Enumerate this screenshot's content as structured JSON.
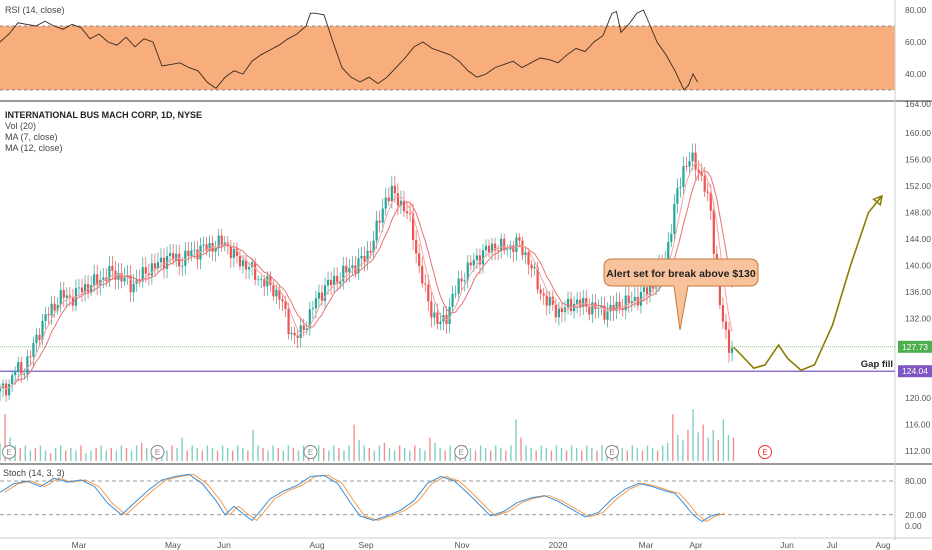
{
  "chart_data": {
    "type": "candlestick",
    "symbol_title": "INTERNATIONAL BUS MACH CORP, 1D, NYSE",
    "indicator_labels": [
      "Vol (20)",
      "MA (7, close)",
      "MA (12, close)"
    ],
    "x_ticks": [
      "Mar",
      "May",
      "Jun",
      "Aug",
      "Sep",
      "Nov",
      "2020",
      "Mar",
      "Apr",
      "Jun",
      "Jul",
      "Aug"
    ],
    "price_axis": {
      "ticks": [
        "164.00",
        "160.00",
        "156.00",
        "152.00",
        "148.00",
        "144.00",
        "140.00",
        "136.00",
        "132.00",
        "128.00",
        "124.00",
        "120.00",
        "116.00",
        "112.00"
      ],
      "ylim": [
        110,
        164.5
      ]
    },
    "price_path": [
      [
        0,
        121
      ],
      [
        4,
        122
      ],
      [
        7,
        124.5
      ],
      [
        10,
        124
      ],
      [
        13,
        126
      ],
      [
        16,
        129
      ],
      [
        20,
        132
      ],
      [
        24,
        134
      ],
      [
        28,
        135.5
      ],
      [
        32,
        135
      ],
      [
        36,
        136.5
      ],
      [
        40,
        137
      ],
      [
        45,
        138
      ],
      [
        50,
        139
      ],
      [
        55,
        138
      ],
      [
        58,
        137
      ],
      [
        62,
        138
      ],
      [
        66,
        139.5
      ],
      [
        70,
        140
      ],
      [
        75,
        141.5
      ],
      [
        80,
        140.5
      ],
      [
        85,
        142
      ],
      [
        90,
        142.5
      ],
      [
        95,
        143
      ],
      [
        100,
        143.5
      ],
      [
        105,
        141
      ],
      [
        110,
        140
      ],
      [
        115,
        138
      ],
      [
        120,
        137
      ],
      [
        125,
        135
      ],
      [
        128,
        131
      ],
      [
        131,
        129
      ],
      [
        134,
        130
      ],
      [
        137,
        132
      ],
      [
        140,
        134.5
      ],
      [
        145,
        137
      ],
      [
        150,
        138
      ],
      [
        155,
        139.5
      ],
      [
        160,
        140.5
      ],
      [
        164,
        142
      ],
      [
        168,
        146
      ],
      [
        171,
        150
      ],
      [
        174,
        151
      ],
      [
        177,
        150
      ],
      [
        180,
        148.5
      ],
      [
        183,
        146
      ],
      [
        186,
        140
      ],
      [
        189,
        136
      ],
      [
        192,
        133
      ],
      [
        195,
        131
      ],
      [
        198,
        132
      ],
      [
        201,
        135
      ],
      [
        205,
        138
      ],
      [
        210,
        140.5
      ],
      [
        215,
        142
      ],
      [
        220,
        143
      ],
      [
        225,
        142.5
      ],
      [
        230,
        143.5
      ],
      [
        233,
        142
      ],
      [
        236,
        140
      ],
      [
        239,
        137
      ],
      [
        242,
        135
      ],
      [
        245,
        134
      ],
      [
        248,
        133
      ],
      [
        251,
        133.5
      ],
      [
        255,
        134.5
      ],
      [
        260,
        134
      ],
      [
        265,
        133.5
      ],
      [
        270,
        133
      ],
      [
        275,
        134
      ],
      [
        280,
        134.5
      ],
      [
        285,
        135.5
      ],
      [
        290,
        137
      ],
      [
        295,
        140
      ],
      [
        298,
        145
      ],
      [
        301,
        151
      ],
      [
        304,
        155
      ],
      [
        307,
        156
      ],
      [
        310,
        155
      ],
      [
        313,
        152
      ],
      [
        316,
        148
      ],
      [
        318,
        140
      ],
      [
        320,
        134
      ],
      [
        322,
        130
      ],
      [
        324,
        128
      ],
      [
        326,
        127.7
      ]
    ],
    "ma_fast_offset": 0.6,
    "last_price": "127.73",
    "gap_fill_level": "124.04",
    "gap_fill_label": "Gap fill",
    "projection_path": [
      [
        326,
        127.7
      ],
      [
        335,
        124.5
      ],
      [
        340,
        125
      ],
      [
        346,
        128
      ],
      [
        350,
        126
      ],
      [
        356,
        124.2
      ],
      [
        362,
        125
      ],
      [
        370,
        131
      ],
      [
        378,
        140
      ],
      [
        386,
        148
      ],
      [
        392,
        150.5
      ]
    ],
    "annotation": {
      "text": "Alert set for break above $130"
    },
    "volume_bars": [
      0.35,
      0.9,
      0.45,
      0.3,
      0.25,
      0.3,
      0.2,
      0.25,
      0.3,
      0.2,
      0.15,
      0.25,
      0.3,
      0.2,
      0.25,
      0.2,
      0.3,
      0.15,
      0.2,
      0.25,
      0.3,
      0.2,
      0.25,
      0.2,
      0.3,
      0.25,
      0.2,
      0.3,
      0.35,
      0.25,
      0.2,
      0.3,
      0.25,
      0.2,
      0.3,
      0.25,
      0.45,
      0.2,
      0.3,
      0.25,
      0.2,
      0.3,
      0.25,
      0.2,
      0.3,
      0.25,
      0.2,
      0.3,
      0.25,
      0.2,
      0.6,
      0.3,
      0.25,
      0.2,
      0.3,
      0.25,
      0.2,
      0.3,
      0.25,
      0.2,
      0.3,
      0.25,
      0.2,
      0.3,
      0.25,
      0.2,
      0.3,
      0.25,
      0.2,
      0.3,
      0.7,
      0.4,
      0.3,
      0.25,
      0.2,
      0.3,
      0.35,
      0.25,
      0.2,
      0.3,
      0.25,
      0.2,
      0.3,
      0.25,
      0.2,
      0.45,
      0.35,
      0.25,
      0.2,
      0.3,
      0.25,
      0.2,
      0.3,
      0.25,
      0.2,
      0.3,
      0.25,
      0.2,
      0.3,
      0.25,
      0.2,
      0.3,
      0.8,
      0.45,
      0.3,
      0.25,
      0.2,
      0.3,
      0.25,
      0.2,
      0.3,
      0.25,
      0.2,
      0.3,
      0.25,
      0.2,
      0.3,
      0.25,
      0.2,
      0.3,
      0.25,
      0.2,
      0.3,
      0.25,
      0.2,
      0.3,
      0.25,
      0.2,
      0.3,
      0.25,
      0.2,
      0.3,
      0.35,
      0.9,
      0.5,
      0.4,
      0.6,
      1.0,
      0.55,
      0.7,
      0.45,
      0.6,
      0.4,
      0.8,
      0.5,
      0.45
    ],
    "earnings_markers": [
      {
        "day": 4,
        "label": "E"
      },
      {
        "day": 70,
        "label": "E"
      },
      {
        "day": 138,
        "label": "E"
      },
      {
        "day": 205,
        "label": "E"
      },
      {
        "day": 272,
        "label": "E"
      },
      {
        "day": 340,
        "label": "E",
        "future": true
      }
    ],
    "rsi": {
      "label": "RSI (14, close)",
      "ticks": [
        "80.00",
        "60.00",
        "40.00"
      ],
      "band": [
        30,
        70
      ],
      "ylim": [
        20,
        90
      ],
      "path": [
        [
          0,
          60
        ],
        [
          4,
          65
        ],
        [
          8,
          72
        ],
        [
          12,
          71
        ],
        [
          16,
          70
        ],
        [
          20,
          73
        ],
        [
          24,
          70
        ],
        [
          28,
          68
        ],
        [
          32,
          71
        ],
        [
          36,
          69
        ],
        [
          40,
          62
        ],
        [
          44,
          65
        ],
        [
          48,
          60
        ],
        [
          52,
          58
        ],
        [
          56,
          63
        ],
        [
          60,
          57
        ],
        [
          64,
          62
        ],
        [
          68,
          60
        ],
        [
          72,
          45
        ],
        [
          76,
          46
        ],
        [
          80,
          47
        ],
        [
          84,
          44
        ],
        [
          88,
          42
        ],
        [
          92,
          35
        ],
        [
          96,
          31
        ],
        [
          100,
          38
        ],
        [
          104,
          42
        ],
        [
          108,
          40
        ],
        [
          112,
          48
        ],
        [
          116,
          52
        ],
        [
          120,
          55
        ],
        [
          124,
          58
        ],
        [
          128,
          62
        ],
        [
          132,
          65
        ],
        [
          136,
          70
        ],
        [
          138,
          78
        ],
        [
          140,
          78
        ],
        [
          144,
          77
        ],
        [
          148,
          60
        ],
        [
          152,
          44
        ],
        [
          156,
          38
        ],
        [
          160,
          35
        ],
        [
          164,
          38
        ],
        [
          168,
          34
        ],
        [
          172,
          38
        ],
        [
          176,
          44
        ],
        [
          180,
          50
        ],
        [
          184,
          57
        ],
        [
          188,
          60
        ],
        [
          192,
          56
        ],
        [
          196,
          54
        ],
        [
          200,
          52
        ],
        [
          204,
          48
        ],
        [
          208,
          42
        ],
        [
          212,
          38
        ],
        [
          216,
          40
        ],
        [
          220,
          44
        ],
        [
          224,
          46
        ],
        [
          228,
          48
        ],
        [
          232,
          44
        ],
        [
          236,
          47
        ],
        [
          240,
          50
        ],
        [
          244,
          49
        ],
        [
          248,
          47
        ],
        [
          252,
          52
        ],
        [
          256,
          56
        ],
        [
          260,
          54
        ],
        [
          264,
          60
        ],
        [
          268,
          64
        ],
        [
          272,
          78
        ],
        [
          274,
          79
        ],
        [
          276,
          66
        ],
        [
          280,
          72
        ],
        [
          283,
          78
        ],
        [
          286,
          80
        ],
        [
          289,
          70
        ],
        [
          292,
          60
        ],
        [
          296,
          52
        ],
        [
          300,
          42
        ],
        [
          304,
          30
        ],
        [
          306,
          33
        ],
        [
          308,
          40
        ],
        [
          310,
          35
        ]
      ]
    },
    "stoch": {
      "label": "Stoch (14, 3, 3)",
      "ticks": [
        "80.00",
        "20.00",
        "0.00"
      ],
      "levels": [
        80,
        20
      ],
      "ylim": [
        -5,
        100
      ],
      "k_path": [
        [
          0,
          60
        ],
        [
          6,
          75
        ],
        [
          12,
          80
        ],
        [
          18,
          70
        ],
        [
          24,
          85
        ],
        [
          30,
          78
        ],
        [
          36,
          82
        ],
        [
          42,
          70
        ],
        [
          48,
          40
        ],
        [
          54,
          20
        ],
        [
          60,
          42
        ],
        [
          66,
          64
        ],
        [
          72,
          82
        ],
        [
          78,
          88
        ],
        [
          84,
          92
        ],
        [
          90,
          75
        ],
        [
          96,
          45
        ],
        [
          100,
          20
        ],
        [
          104,
          35
        ],
        [
          108,
          22
        ],
        [
          112,
          10
        ],
        [
          116,
          28
        ],
        [
          120,
          48
        ],
        [
          126,
          62
        ],
        [
          132,
          72
        ],
        [
          138,
          88
        ],
        [
          144,
          90
        ],
        [
          150,
          76
        ],
        [
          156,
          40
        ],
        [
          160,
          18
        ],
        [
          166,
          10
        ],
        [
          172,
          18
        ],
        [
          178,
          28
        ],
        [
          184,
          45
        ],
        [
          190,
          76
        ],
        [
          196,
          88
        ],
        [
          202,
          80
        ],
        [
          208,
          58
        ],
        [
          214,
          34
        ],
        [
          218,
          18
        ],
        [
          224,
          26
        ],
        [
          230,
          42
        ],
        [
          236,
          50
        ],
        [
          242,
          54
        ],
        [
          248,
          44
        ],
        [
          254,
          30
        ],
        [
          260,
          16
        ],
        [
          266,
          24
        ],
        [
          272,
          48
        ],
        [
          278,
          66
        ],
        [
          284,
          76
        ],
        [
          290,
          70
        ],
        [
          296,
          62
        ],
        [
          300,
          58
        ],
        [
          304,
          40
        ],
        [
          308,
          20
        ],
        [
          312,
          8
        ],
        [
          316,
          18
        ],
        [
          320,
          22
        ]
      ],
      "d_offset": 2
    }
  }
}
